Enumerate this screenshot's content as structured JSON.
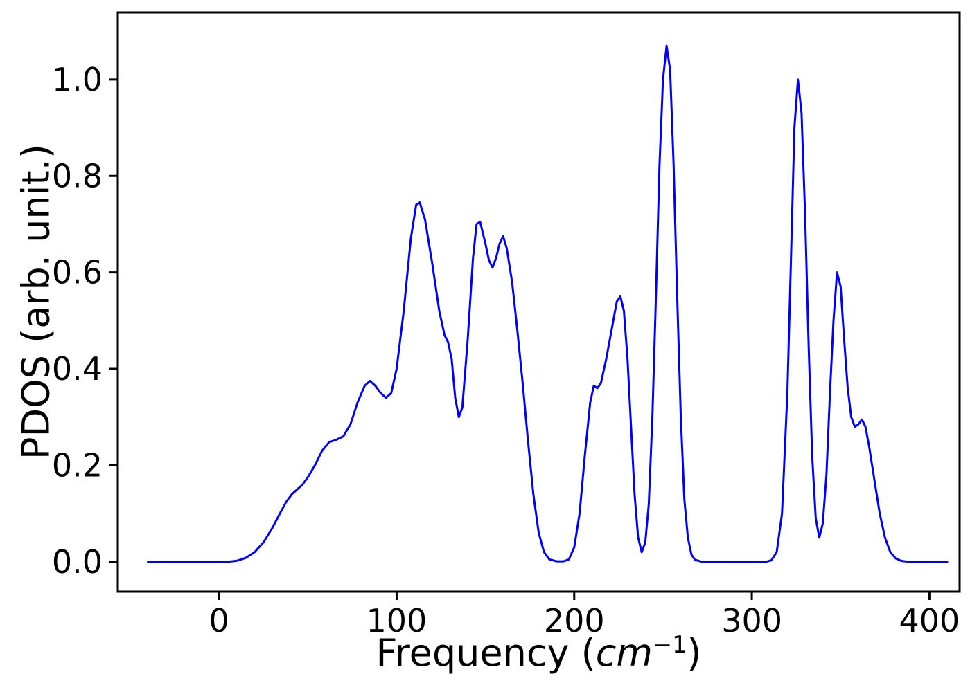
{
  "chart_data": {
    "type": "line",
    "title": "",
    "xlabel": {
      "prefix": "Frequency (",
      "italic": "cm",
      "superscript": "−1",
      "suffix": ")"
    },
    "ylabel": "PDOS (arb. unit.)",
    "xlim": [
      -57,
      417
    ],
    "ylim": [
      -0.062,
      1.139
    ],
    "xticks": [
      0,
      100,
      200,
      300,
      400
    ],
    "xtick_labels": [
      "0",
      "100",
      "200",
      "300",
      "400"
    ],
    "yticks": [
      0.0,
      0.2,
      0.4,
      0.6,
      0.8,
      1.0
    ],
    "ytick_labels": [
      "0.0",
      "0.2",
      "0.4",
      "0.6",
      "0.8",
      "1.0"
    ],
    "grid": false,
    "line_color": "#0000ff",
    "series": [
      {
        "name": "PDOS",
        "color": "#0000ff",
        "line_width": 3,
        "points": [
          [
            -40,
            0
          ],
          [
            -30,
            0
          ],
          [
            -20,
            0
          ],
          [
            -10,
            0
          ],
          [
            0,
            0
          ],
          [
            5,
            0
          ],
          [
            10,
            0.002
          ],
          [
            15,
            0.008
          ],
          [
            20,
            0.02
          ],
          [
            25,
            0.04
          ],
          [
            30,
            0.07
          ],
          [
            35,
            0.105
          ],
          [
            38,
            0.125
          ],
          [
            41,
            0.14
          ],
          [
            44,
            0.15
          ],
          [
            47,
            0.16
          ],
          [
            50,
            0.175
          ],
          [
            54,
            0.2
          ],
          [
            58,
            0.23
          ],
          [
            62,
            0.248
          ],
          [
            66,
            0.253
          ],
          [
            70,
            0.26
          ],
          [
            74,
            0.285
          ],
          [
            78,
            0.33
          ],
          [
            82,
            0.365
          ],
          [
            85,
            0.375
          ],
          [
            88,
            0.365
          ],
          [
            91,
            0.35
          ],
          [
            94,
            0.34
          ],
          [
            97,
            0.35
          ],
          [
            100,
            0.4
          ],
          [
            104,
            0.52
          ],
          [
            108,
            0.67
          ],
          [
            111,
            0.74
          ],
          [
            113,
            0.745
          ],
          [
            116,
            0.71
          ],
          [
            120,
            0.62
          ],
          [
            124,
            0.52
          ],
          [
            127,
            0.47
          ],
          [
            129,
            0.455
          ],
          [
            131,
            0.42
          ],
          [
            133,
            0.34
          ],
          [
            135,
            0.3
          ],
          [
            137,
            0.32
          ],
          [
            140,
            0.46
          ],
          [
            143,
            0.63
          ],
          [
            145,
            0.7
          ],
          [
            147,
            0.705
          ],
          [
            150,
            0.66
          ],
          [
            152,
            0.625
          ],
          [
            154,
            0.61
          ],
          [
            156,
            0.63
          ],
          [
            158,
            0.66
          ],
          [
            160,
            0.675
          ],
          [
            162,
            0.65
          ],
          [
            165,
            0.58
          ],
          [
            168,
            0.48
          ],
          [
            171,
            0.37
          ],
          [
            174,
            0.25
          ],
          [
            177,
            0.14
          ],
          [
            180,
            0.06
          ],
          [
            183,
            0.02
          ],
          [
            186,
            0.005
          ],
          [
            190,
            0.001
          ],
          [
            194,
            0.001
          ],
          [
            197,
            0.005
          ],
          [
            200,
            0.03
          ],
          [
            203,
            0.1
          ],
          [
            206,
            0.22
          ],
          [
            209,
            0.33
          ],
          [
            211,
            0.365
          ],
          [
            213,
            0.36
          ],
          [
            215,
            0.37
          ],
          [
            218,
            0.42
          ],
          [
            221,
            0.48
          ],
          [
            224,
            0.54
          ],
          [
            226,
            0.55
          ],
          [
            228,
            0.52
          ],
          [
            230,
            0.42
          ],
          [
            232,
            0.28
          ],
          [
            234,
            0.14
          ],
          [
            236,
            0.05
          ],
          [
            238,
            0.02
          ],
          [
            240,
            0.04
          ],
          [
            242,
            0.12
          ],
          [
            244,
            0.3
          ],
          [
            246,
            0.55
          ],
          [
            248,
            0.82
          ],
          [
            250,
            1.0
          ],
          [
            252,
            1.07
          ],
          [
            254,
            1.02
          ],
          [
            256,
            0.82
          ],
          [
            258,
            0.55
          ],
          [
            260,
            0.3
          ],
          [
            262,
            0.13
          ],
          [
            264,
            0.05
          ],
          [
            266,
            0.015
          ],
          [
            268,
            0.004
          ],
          [
            272,
            0
          ],
          [
            280,
            0
          ],
          [
            290,
            0
          ],
          [
            300,
            0
          ],
          [
            308,
            0
          ],
          [
            311,
            0.003
          ],
          [
            314,
            0.02
          ],
          [
            317,
            0.1
          ],
          [
            320,
            0.35
          ],
          [
            322,
            0.62
          ],
          [
            324,
            0.9
          ],
          [
            326,
            1.0
          ],
          [
            328,
            0.93
          ],
          [
            330,
            0.72
          ],
          [
            332,
            0.45
          ],
          [
            334,
            0.22
          ],
          [
            336,
            0.09
          ],
          [
            338,
            0.05
          ],
          [
            340,
            0.08
          ],
          [
            342,
            0.18
          ],
          [
            344,
            0.35
          ],
          [
            346,
            0.5
          ],
          [
            348,
            0.6
          ],
          [
            350,
            0.57
          ],
          [
            352,
            0.46
          ],
          [
            354,
            0.36
          ],
          [
            356,
            0.3
          ],
          [
            358,
            0.28
          ],
          [
            360,
            0.285
          ],
          [
            362,
            0.295
          ],
          [
            364,
            0.28
          ],
          [
            366,
            0.24
          ],
          [
            369,
            0.17
          ],
          [
            372,
            0.1
          ],
          [
            375,
            0.05
          ],
          [
            378,
            0.02
          ],
          [
            381,
            0.007
          ],
          [
            384,
            0.002
          ],
          [
            388,
            0
          ],
          [
            395,
            0
          ],
          [
            405,
            0
          ],
          [
            410,
            0
          ]
        ]
      }
    ]
  }
}
